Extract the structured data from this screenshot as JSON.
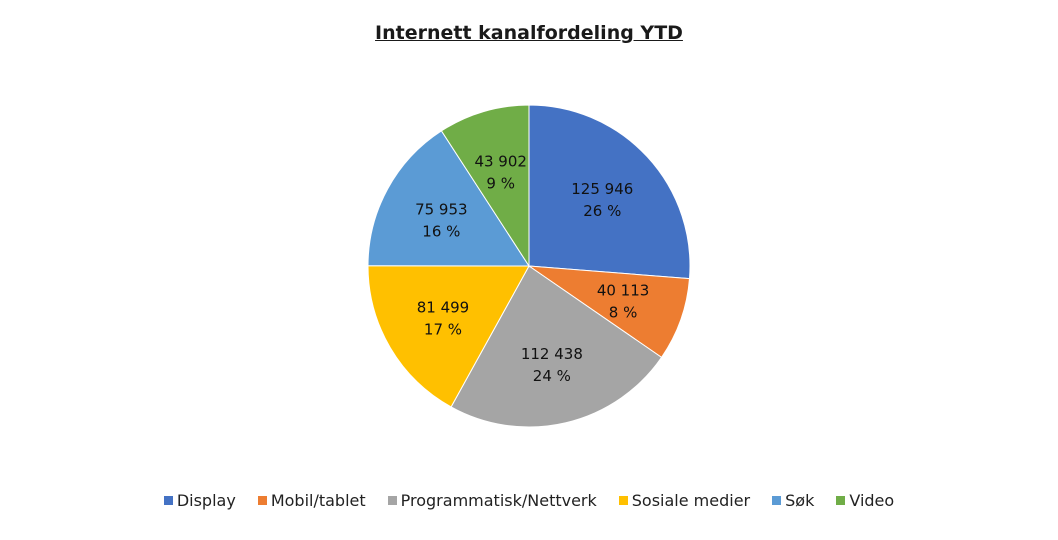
{
  "chart_data": {
    "type": "pie",
    "title": "Internett kanalfordeling YTD",
    "categories": [
      "Display",
      "Mobil/tablet",
      "Programmatisk/Nettverk",
      "Sosiale medier",
      "Søk",
      "Video"
    ],
    "values": [
      125946,
      40113,
      112438,
      81499,
      75953,
      43902
    ],
    "value_labels": [
      "125 946",
      "40 113",
      "112 438",
      "81 499",
      "75 953",
      "43 902"
    ],
    "percent_labels": [
      "26 %",
      "8 %",
      "24 %",
      "17 %",
      "16 %",
      "9 %"
    ],
    "colors": [
      "#4472C4",
      "#ED7D31",
      "#A5A5A5",
      "#FFC000",
      "#5B9BD5",
      "#70AD47"
    ],
    "legend_position": "bottom"
  }
}
